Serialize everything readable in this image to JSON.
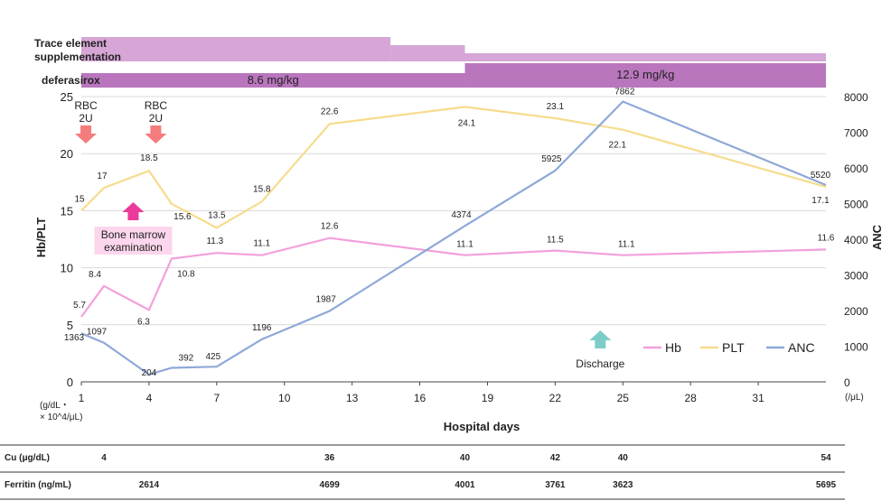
{
  "chart_data": {
    "type": "line",
    "xlabel": "Hospital days",
    "x_ticks": [
      1,
      4,
      7,
      10,
      13,
      16,
      19,
      22,
      25,
      28,
      31
    ],
    "xlim": [
      1,
      34
    ],
    "left_axis": {
      "label": "Hb/PLT",
      "ylim": [
        0,
        25
      ],
      "ticks": [
        0,
        5,
        10,
        15,
        20,
        25
      ],
      "unit": "(g/dL・× 10^4/μL)"
    },
    "right_axis": {
      "label": "ANC",
      "ylim": [
        0,
        8000
      ],
      "ticks": [
        0,
        1000,
        2000,
        3000,
        4000,
        5000,
        6000,
        7000,
        8000
      ],
      "unit": "(/μL)"
    },
    "legend": [
      {
        "name": "Hb",
        "color": "#f2a0dc"
      },
      {
        "name": "PLT",
        "color": "#f6dc8c"
      },
      {
        "name": "ANC",
        "color": "#8ea9d8"
      }
    ],
    "series": [
      {
        "name": "Hb",
        "axis": "left",
        "color": "#f2a0dc",
        "x": [
          1,
          2,
          4,
          5,
          7,
          9,
          12,
          18,
          22,
          25,
          34
        ],
        "y": [
          5.7,
          8.4,
          6.3,
          10.8,
          11.3,
          11.1,
          12.6,
          11.1,
          11.5,
          11.1,
          11.6
        ],
        "labels": [
          "5.7",
          "8.4",
          "6.3",
          "10.8",
          "11.3",
          "11.1",
          "12.6",
          "11.1",
          "11.5",
          "11.1",
          "11.6"
        ]
      },
      {
        "name": "PLT",
        "axis": "left",
        "color": "#f6dc8c",
        "x": [
          1,
          2,
          4,
          5,
          7,
          9,
          12,
          18,
          22,
          25,
          34
        ],
        "y": [
          15,
          17,
          18.5,
          15.6,
          13.5,
          15.8,
          22.6,
          24.1,
          23.1,
          22.1,
          17.1
        ],
        "labels": [
          "15",
          "17",
          "18.5",
          "15.6",
          "13.5",
          "15.8",
          "22.6",
          "24.1",
          "23.1",
          "22.1",
          "17.1"
        ]
      },
      {
        "name": "ANC",
        "axis": "right",
        "color": "#8ea9d8",
        "x": [
          1,
          2,
          4,
          5,
          7,
          9,
          12,
          18,
          22,
          25,
          34
        ],
        "y": [
          1363,
          1097,
          204,
          392,
          425,
          1196,
          1987,
          4374,
          5925,
          7862,
          5520
        ],
        "labels": [
          "1363",
          "1097",
          "204",
          "392",
          "425",
          "1196",
          "1987",
          "4374",
          "5925",
          "7862",
          "5520"
        ]
      }
    ],
    "treatment_bars": [
      {
        "name": "Trace element supplementation",
        "color": "#d6a6d6",
        "segments": [
          {
            "x": [
              1,
              14.7
            ],
            "level": 2
          },
          {
            "x": [
              14.7,
              18
            ],
            "level": 1
          },
          {
            "x": [
              18,
              34
            ],
            "level": 0
          }
        ]
      },
      {
        "name": "deferasirox",
        "color": "#b976bd",
        "segments": [
          {
            "x": [
              1,
              18
            ],
            "level": 0,
            "label": "8.6 mg/kg"
          },
          {
            "x": [
              18,
              34
            ],
            "level": 1,
            "label": "12.9 mg/kg"
          }
        ]
      }
    ],
    "annotations": [
      {
        "text": [
          "RBC",
          "2U"
        ],
        "x": 1.2,
        "kind": "down-arrow",
        "color": "#f47c7c"
      },
      {
        "text": [
          "RBC",
          "2U"
        ],
        "x": 4.3,
        "kind": "down-arrow",
        "color": "#f47c7c"
      },
      {
        "text": [
          "Bone marrow",
          "examination"
        ],
        "x": 3.3,
        "kind": "up-arrow",
        "color": "#ec3a9a"
      },
      {
        "text": [
          "Discharge"
        ],
        "x": 24,
        "kind": "up-arrow",
        "color": "#7ccdc8"
      }
    ],
    "lab_table": [
      {
        "label": "Cu (μg/dL)",
        "points": [
          {
            "x": 2,
            "value": "4"
          },
          {
            "x": 12,
            "value": "36"
          },
          {
            "x": 18,
            "value": "40"
          },
          {
            "x": 22,
            "value": "42"
          },
          {
            "x": 25,
            "value": "40"
          },
          {
            "x": 34,
            "value": "54"
          }
        ]
      },
      {
        "label": "Ferritin (ng/mL)",
        "points": [
          {
            "x": 4,
            "value": "2614"
          },
          {
            "x": 12,
            "value": "4699"
          },
          {
            "x": 18,
            "value": "4001"
          },
          {
            "x": 22,
            "value": "3761"
          },
          {
            "x": 25,
            "value": "3623"
          },
          {
            "x": 34,
            "value": "5695"
          }
        ]
      }
    ]
  }
}
